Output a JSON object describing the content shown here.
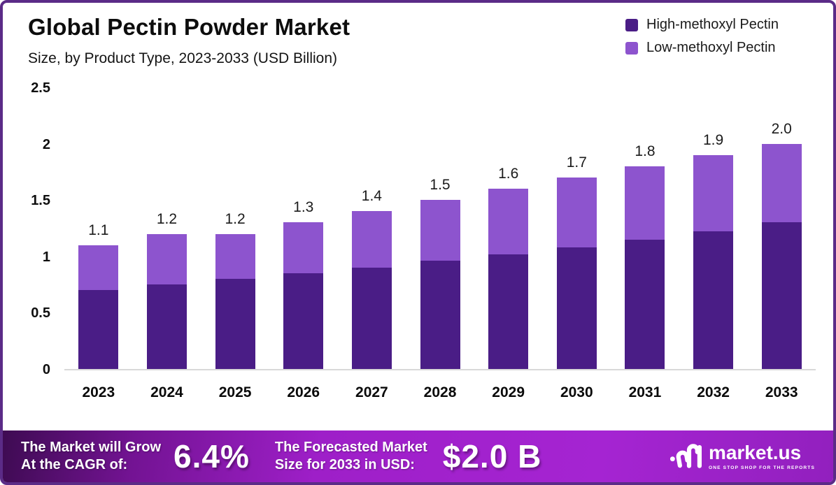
{
  "header": {
    "title": "Global Pectin Powder Market",
    "subtitle": "Size, by Product Type, 2023-2033 (USD Billion)"
  },
  "legend": [
    {
      "label": "High-methoxyl Pectin",
      "color": "#4A1D86"
    },
    {
      "label": "Low-methoxyl Pectin",
      "color": "#8D54CE"
    }
  ],
  "chart_data": {
    "type": "bar",
    "stacked": true,
    "title": "Global Pectin Powder Market Size, by Product Type, 2023-2033 (USD Billion)",
    "xlabel": "",
    "ylabel": "USD Billion",
    "ylim": [
      0,
      2.5
    ],
    "grid": false,
    "legend_position": "top-right",
    "categories": [
      "2023",
      "2024",
      "2025",
      "2026",
      "2027",
      "2028",
      "2029",
      "2030",
      "2031",
      "2032",
      "2033"
    ],
    "series": [
      {
        "name": "High-methoxyl Pectin",
        "color": "#4A1D86",
        "values": [
          0.7,
          0.75,
          0.8,
          0.85,
          0.9,
          0.96,
          1.02,
          1.08,
          1.15,
          1.22,
          1.3
        ]
      },
      {
        "name": "Low-methoxyl Pectin",
        "color": "#8D54CE",
        "values": [
          0.4,
          0.45,
          0.4,
          0.45,
          0.5,
          0.54,
          0.58,
          0.62,
          0.65,
          0.68,
          0.7
        ]
      }
    ],
    "totals": [
      1.1,
      1.2,
      1.2,
      1.3,
      1.4,
      1.5,
      1.6,
      1.7,
      1.8,
      1.9,
      2.0
    ],
    "total_labels": [
      "1.1",
      "1.2",
      "1.2",
      "1.3",
      "1.4",
      "1.5",
      "1.6",
      "1.7",
      "1.8",
      "1.9",
      "2.0"
    ],
    "y_ticks": [
      {
        "value": 2.5,
        "label": "2.5"
      },
      {
        "value": 2.0,
        "label": "2"
      },
      {
        "value": 1.5,
        "label": "1.5"
      },
      {
        "value": 1.0,
        "label": "1"
      },
      {
        "value": 0.5,
        "label": "0.5"
      },
      {
        "value": 0.0,
        "label": "0"
      }
    ]
  },
  "footer": {
    "cagr_line1": "The Market will Grow",
    "cagr_line2": "At the CAGR of:",
    "cagr_value": "6.4%",
    "forecast_line1": "The Forecasted Market",
    "forecast_line2": "Size for 2033 in USD:",
    "forecast_value": "$2.0 B",
    "brand_name": "market.us",
    "brand_tagline": "ONE STOP SHOP FOR THE REPORTS"
  }
}
